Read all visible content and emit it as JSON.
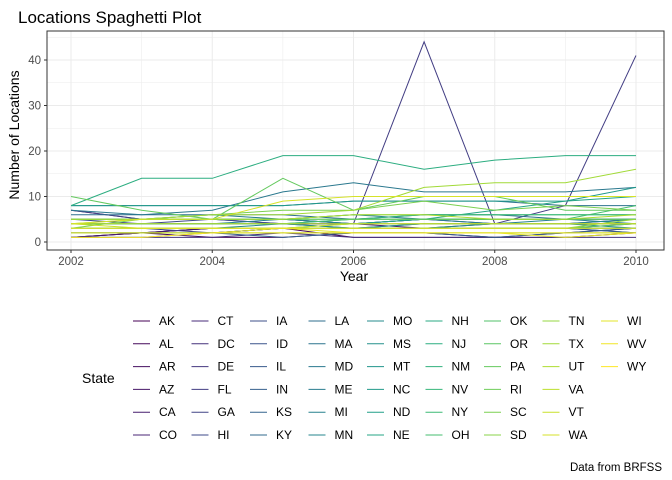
{
  "chart_data": {
    "type": "line",
    "title": "Locations Spaghetti Plot",
    "xlabel": "Year",
    "ylabel": "Number of Locations",
    "caption": "Data from BRFSS",
    "xlim": [
      2002,
      2010
    ],
    "ylim": [
      0,
      44
    ],
    "x_ticks": [
      2002,
      2004,
      2006,
      2008,
      2010
    ],
    "y_ticks": [
      0,
      10,
      20,
      30,
      40
    ],
    "grid": true,
    "legend": {
      "title": "State",
      "placement": "bottom"
    },
    "x": [
      2002,
      2003,
      2004,
      2005,
      2006,
      2007,
      2008,
      2009,
      2010
    ],
    "series": [
      {
        "name": "AK",
        "values": [
          null,
          null,
          2,
          3,
          1,
          1,
          1,
          1,
          2
        ]
      },
      {
        "name": "AL",
        "values": [
          1,
          2,
          1,
          1,
          2,
          2,
          1,
          2,
          3
        ]
      },
      {
        "name": "AR",
        "values": [
          1,
          2,
          3,
          3,
          3,
          3,
          3,
          3,
          3
        ]
      },
      {
        "name": "AZ",
        "values": [
          2,
          2,
          3,
          3,
          3,
          3,
          3,
          3,
          3
        ]
      },
      {
        "name": "CA",
        "values": [
          1,
          2,
          3,
          3,
          3,
          3,
          3,
          3,
          3
        ]
      },
      {
        "name": "CO",
        "values": [
          4,
          4,
          4,
          4,
          4,
          3,
          4,
          4,
          4
        ]
      },
      {
        "name": "CT",
        "values": [
          7,
          5,
          5,
          5,
          4,
          5,
          4,
          4,
          5
        ]
      },
      {
        "name": "DC",
        "values": [
          1,
          1,
          1,
          2,
          1,
          1,
          1,
          1,
          1
        ]
      },
      {
        "name": "DE",
        "values": [
          3,
          3,
          3,
          3,
          3,
          3,
          3,
          3,
          3
        ]
      },
      {
        "name": "FL",
        "values": [
          7,
          5,
          5,
          4,
          4,
          44,
          4,
          8,
          41
        ]
      },
      {
        "name": "GA",
        "values": [
          3,
          3,
          2,
          3,
          3,
          3,
          3,
          3,
          4
        ]
      },
      {
        "name": "HI",
        "values": [
          5,
          4,
          5,
          4,
          4,
          4,
          4,
          4,
          4
        ]
      },
      {
        "name": "IA",
        "values": [
          null,
          null,
          null,
          null,
          null,
          null,
          null,
          null,
          2
        ]
      },
      {
        "name": "ID",
        "values": [
          2,
          2,
          2,
          3,
          3,
          3,
          3,
          3,
          2
        ]
      },
      {
        "name": "IL",
        "values": [
          3,
          3,
          3,
          3,
          3,
          3,
          3,
          3,
          2
        ]
      },
      {
        "name": "IN",
        "values": [
          1,
          1,
          2,
          1,
          2,
          2,
          1,
          2,
          3
        ]
      },
      {
        "name": "KS",
        "values": [
          4,
          4,
          4,
          4,
          3,
          4,
          4,
          4,
          4
        ]
      },
      {
        "name": "KY",
        "values": [
          5,
          5,
          5,
          5,
          4,
          5,
          5,
          5,
          5
        ]
      },
      {
        "name": "LA",
        "values": [
          6,
          6,
          6,
          6,
          5,
          6,
          6,
          5,
          5
        ]
      },
      {
        "name": "MA",
        "values": [
          8,
          8,
          8,
          8,
          9,
          9,
          9,
          8,
          8
        ]
      },
      {
        "name": "MD",
        "values": [
          7,
          6,
          7,
          11,
          13,
          11,
          11,
          11,
          12
        ]
      },
      {
        "name": "ME",
        "values": [
          5,
          5,
          6,
          5,
          6,
          5,
          5,
          5,
          5
        ]
      },
      {
        "name": "MI",
        "values": [
          4,
          4,
          4,
          5,
          4,
          5,
          4,
          5,
          4
        ]
      },
      {
        "name": "MN",
        "values": [
          3,
          3,
          3,
          4,
          3,
          4,
          4,
          4,
          5
        ]
      },
      {
        "name": "MO",
        "values": [
          3,
          3,
          3,
          3,
          3,
          3,
          4,
          4,
          3
        ]
      },
      {
        "name": "MS",
        "values": [
          3,
          3,
          3,
          3,
          3,
          3,
          3,
          3,
          3
        ]
      },
      {
        "name": "MT",
        "values": [
          3,
          3,
          3,
          3,
          3,
          3,
          3,
          3,
          3
        ]
      },
      {
        "name": "NC",
        "values": [
          8,
          8,
          8,
          8,
          9,
          9,
          9,
          9,
          12
        ]
      },
      {
        "name": "ND",
        "values": [
          3,
          3,
          3,
          3,
          3,
          3,
          3,
          3,
          3
        ]
      },
      {
        "name": "NE",
        "values": [
          3,
          3,
          3,
          3,
          4,
          5,
          7,
          9,
          10
        ]
      },
      {
        "name": "NH",
        "values": [
          5,
          5,
          5,
          5,
          5,
          5,
          5,
          5,
          5
        ]
      },
      {
        "name": "NJ",
        "values": [
          8,
          14,
          14,
          19,
          19,
          16,
          18,
          19,
          19
        ]
      },
      {
        "name": "NM",
        "values": [
          4,
          4,
          4,
          4,
          5,
          6,
          6,
          6,
          6
        ]
      },
      {
        "name": "NV",
        "values": [
          2,
          2,
          2,
          2,
          2,
          2,
          2,
          2,
          2
        ]
      },
      {
        "name": "NY",
        "values": [
          5,
          5,
          5,
          5,
          6,
          6,
          6,
          6,
          6
        ]
      },
      {
        "name": "OH",
        "values": [
          4,
          4,
          4,
          4,
          5,
          5,
          5,
          5,
          8
        ]
      },
      {
        "name": "OK",
        "values": [
          3,
          3,
          3,
          3,
          3,
          3,
          3,
          3,
          3
        ]
      },
      {
        "name": "OR",
        "values": [
          3,
          3,
          3,
          3,
          3,
          3,
          3,
          3,
          4
        ]
      },
      {
        "name": "PA",
        "values": [
          10,
          7,
          5,
          14,
          7,
          10,
          10,
          7,
          7
        ]
      },
      {
        "name": "RI",
        "values": [
          5,
          5,
          5,
          5,
          5,
          5,
          5,
          5,
          5
        ]
      },
      {
        "name": "SC",
        "values": [
          3,
          5,
          6,
          7,
          7,
          9,
          7,
          8,
          7
        ]
      },
      {
        "name": "SD",
        "values": [
          2,
          2,
          2,
          2,
          2,
          2,
          2,
          2,
          2
        ]
      },
      {
        "name": "TN",
        "values": [
          3,
          3,
          3,
          3,
          3,
          3,
          3,
          3,
          5
        ]
      },
      {
        "name": "TX",
        "values": [
          4,
          5,
          6,
          6,
          7,
          12,
          13,
          13,
          16
        ]
      },
      {
        "name": "UT",
        "values": [
          5,
          5,
          5,
          5,
          6,
          6,
          5,
          5,
          6
        ]
      },
      {
        "name": "VA",
        "values": [
          4,
          4,
          4,
          4,
          4,
          4,
          4,
          4,
          4
        ]
      },
      {
        "name": "VT",
        "values": [
          4,
          3,
          3,
          3,
          4,
          4,
          4,
          4,
          4
        ]
      },
      {
        "name": "WA",
        "values": [
          4,
          5,
          5,
          9,
          10,
          10,
          10,
          10,
          10
        ]
      },
      {
        "name": "WI",
        "values": [
          2,
          2,
          2,
          3,
          2,
          2,
          2,
          1,
          2
        ]
      },
      {
        "name": "WV",
        "values": [
          3,
          3,
          3,
          3,
          3,
          3,
          3,
          3,
          3
        ]
      },
      {
        "name": "WY",
        "values": [
          1,
          1,
          2,
          2,
          2,
          2,
          2,
          2,
          2
        ]
      }
    ]
  }
}
